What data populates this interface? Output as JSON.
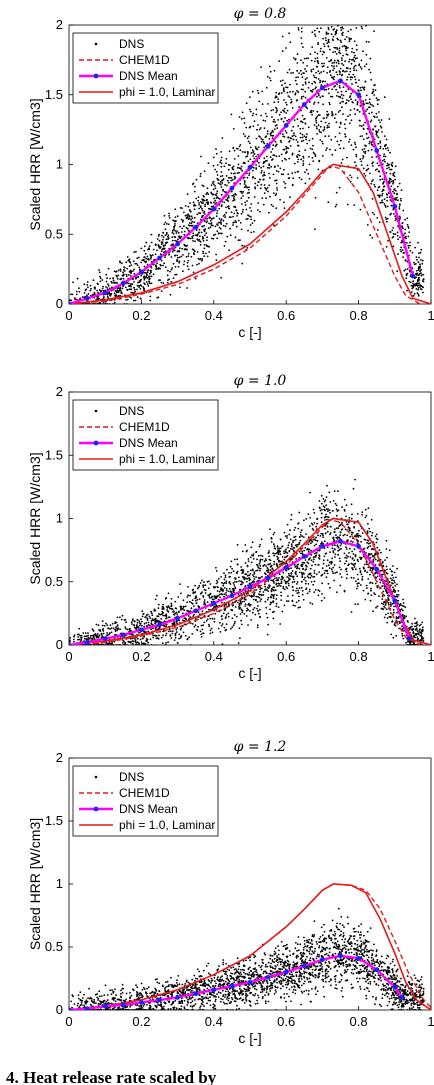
{
  "chart_data": [
    {
      "type": "scatter",
      "title": "φ = 0.8",
      "xlabel": "c [-]",
      "ylabel": "Scaled HRR [W/cm3]",
      "xlim": [
        0,
        1
      ],
      "ylim": [
        0,
        2
      ],
      "xticks": [
        "0",
        "0.2",
        "0.4",
        "0.6",
        "0.8",
        "1"
      ],
      "yticks": [
        "0",
        "0.5",
        "1",
        "1.5",
        "2"
      ],
      "legend": [
        "DNS",
        "CHEM1D",
        "DNS Mean",
        "phi = 1.0, Laminar"
      ],
      "legend_position": "top-left",
      "dns_scatter": {
        "peak_c": 0.75,
        "peak_mean": 1.58,
        "max": 2.0
      },
      "dns_mean": {
        "x": [
          0,
          0.05,
          0.1,
          0.15,
          0.2,
          0.25,
          0.3,
          0.35,
          0.4,
          0.45,
          0.5,
          0.55,
          0.6,
          0.65,
          0.7,
          0.75,
          0.8,
          0.85,
          0.9,
          0.95
        ],
        "y": [
          0.0,
          0.04,
          0.08,
          0.15,
          0.23,
          0.33,
          0.43,
          0.55,
          0.68,
          0.83,
          0.98,
          1.13,
          1.28,
          1.43,
          1.55,
          1.6,
          1.5,
          1.1,
          0.7,
          0.2
        ]
      },
      "chem1d": {
        "x": [
          0,
          0.1,
          0.2,
          0.3,
          0.4,
          0.5,
          0.6,
          0.65,
          0.7,
          0.72,
          0.75,
          0.8,
          0.85,
          0.9,
          0.93,
          0.97
        ],
        "y": [
          0,
          0.02,
          0.07,
          0.14,
          0.25,
          0.4,
          0.63,
          0.78,
          0.93,
          0.99,
          0.97,
          0.8,
          0.5,
          0.2,
          0.06,
          0.0
        ]
      },
      "laminar": {
        "x": [
          0,
          0.1,
          0.2,
          0.3,
          0.4,
          0.5,
          0.6,
          0.65,
          0.7,
          0.73,
          0.8,
          0.84,
          0.88,
          0.92,
          0.95,
          1.0
        ],
        "y": [
          0,
          0.03,
          0.08,
          0.16,
          0.28,
          0.43,
          0.66,
          0.8,
          0.95,
          1.0,
          0.97,
          0.8,
          0.5,
          0.2,
          0.04,
          0.0
        ]
      }
    },
    {
      "type": "scatter",
      "title": "φ = 1.0",
      "xlabel": "c [-]",
      "ylabel": "Scaled HRR [W/cm3]",
      "xlim": [
        0,
        1
      ],
      "ylim": [
        0,
        2
      ],
      "xticks": [
        "0",
        "0.2",
        "0.4",
        "0.6",
        "0.8",
        "1"
      ],
      "yticks": [
        "0",
        "0.5",
        "1",
        "1.5",
        "2"
      ],
      "legend": [
        "DNS",
        "CHEM1D",
        "DNS Mean",
        "phi = 1.0, Laminar"
      ],
      "legend_position": "top-left",
      "dns_scatter": {
        "peak_c": 0.75,
        "peak_mean": 0.82,
        "max": 1.55
      },
      "dns_mean": {
        "x": [
          0,
          0.05,
          0.1,
          0.15,
          0.2,
          0.25,
          0.3,
          0.35,
          0.4,
          0.45,
          0.5,
          0.55,
          0.6,
          0.65,
          0.7,
          0.75,
          0.8,
          0.85,
          0.9,
          0.94
        ],
        "y": [
          0.0,
          0.02,
          0.05,
          0.08,
          0.12,
          0.16,
          0.21,
          0.27,
          0.33,
          0.39,
          0.46,
          0.53,
          0.61,
          0.7,
          0.78,
          0.82,
          0.78,
          0.6,
          0.35,
          0.05
        ]
      },
      "chem1d": {
        "x": [
          0,
          0.1,
          0.2,
          0.3,
          0.4,
          0.5,
          0.6,
          0.65,
          0.7,
          0.72,
          0.75,
          0.8,
          0.85,
          0.9,
          0.93,
          0.97
        ],
        "y": [
          0,
          0.02,
          0.07,
          0.14,
          0.25,
          0.4,
          0.63,
          0.78,
          0.93,
          0.99,
          0.97,
          0.8,
          0.5,
          0.2,
          0.06,
          0.0
        ]
      },
      "laminar": {
        "x": [
          0,
          0.1,
          0.2,
          0.3,
          0.4,
          0.5,
          0.6,
          0.65,
          0.7,
          0.73,
          0.8,
          0.84,
          0.88,
          0.92,
          0.95,
          1.0
        ],
        "y": [
          0,
          0.03,
          0.08,
          0.16,
          0.28,
          0.43,
          0.66,
          0.8,
          0.95,
          1.0,
          0.97,
          0.8,
          0.5,
          0.2,
          0.04,
          0.0
        ]
      }
    },
    {
      "type": "scatter",
      "title": "φ = 1.2",
      "xlabel": "c [-]",
      "ylabel": "Scaled HRR [W/cm3]",
      "xlim": [
        0,
        1
      ],
      "ylim": [
        0,
        2
      ],
      "xticks": [
        "0",
        "0.2",
        "0.4",
        "0.6",
        "0.8",
        "1"
      ],
      "yticks": [
        "0",
        "0.5",
        "1",
        "1.5",
        "2"
      ],
      "legend": [
        "DNS",
        "CHEM1D",
        "DNS Mean",
        "phi = 1.0, Laminar"
      ],
      "legend_position": "top-left",
      "dns_scatter": {
        "peak_c": 0.75,
        "peak_mean": 0.43,
        "max": 0.95
      },
      "dns_mean": {
        "x": [
          0,
          0.05,
          0.1,
          0.15,
          0.2,
          0.25,
          0.3,
          0.35,
          0.4,
          0.45,
          0.5,
          0.55,
          0.6,
          0.65,
          0.7,
          0.75,
          0.8,
          0.85,
          0.9,
          0.92
        ],
        "y": [
          0.0,
          0.01,
          0.03,
          0.04,
          0.06,
          0.08,
          0.1,
          0.13,
          0.16,
          0.19,
          0.22,
          0.26,
          0.3,
          0.35,
          0.4,
          0.43,
          0.41,
          0.32,
          0.18,
          0.1
        ]
      },
      "chem1d": {
        "x": [
          0,
          0.1,
          0.2,
          0.3,
          0.4,
          0.5,
          0.6,
          0.65,
          0.7,
          0.73,
          0.78,
          0.82,
          0.86,
          0.9,
          0.94,
          0.98,
          1.0
        ],
        "y": [
          0,
          0.03,
          0.08,
          0.16,
          0.28,
          0.43,
          0.66,
          0.8,
          0.95,
          1.0,
          0.99,
          0.95,
          0.8,
          0.55,
          0.28,
          0.08,
          0.02
        ]
      },
      "laminar": {
        "x": [
          0,
          0.1,
          0.2,
          0.3,
          0.4,
          0.5,
          0.6,
          0.65,
          0.7,
          0.73,
          0.78,
          0.82,
          0.86,
          0.9,
          0.93,
          0.96,
          1.0
        ],
        "y": [
          0,
          0.03,
          0.08,
          0.16,
          0.28,
          0.43,
          0.66,
          0.8,
          0.95,
          1.0,
          0.99,
          0.93,
          0.72,
          0.45,
          0.22,
          0.08,
          0.0
        ]
      }
    }
  ],
  "caption_fragment": "4.   Heat release rate scaled by"
}
